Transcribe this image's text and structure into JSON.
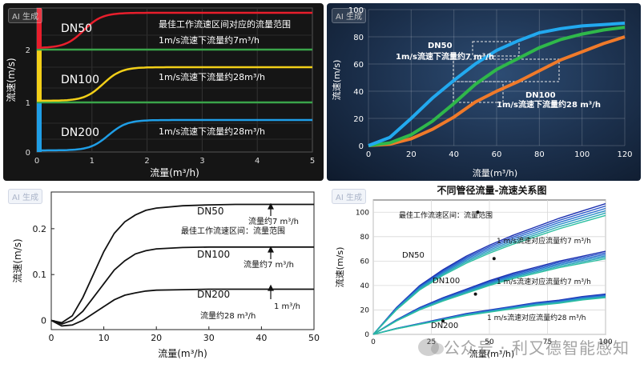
{
  "badges": [
    "AI 生成",
    "AI 生成",
    "AI 生成",
    "AI 生成"
  ],
  "watermark": "公众号 · 利又德智能感知",
  "chart_data": [
    {
      "type": "line",
      "xlabel": "流量(m³/h)",
      "ylabel": "流速(m/s)",
      "xlim": [
        0,
        5
      ],
      "xticks": [
        "0",
        "1",
        "2",
        "3",
        "4",
        "5"
      ],
      "ylabels_left": [
        "2",
        "1",
        "0"
      ],
      "grid": true,
      "series": [
        {
          "name": "DN50",
          "color": "#e81e2c"
        },
        {
          "name": "DN100",
          "color": "#f2cf18"
        },
        {
          "name": "DN200",
          "color": "#1f9ee6"
        }
      ],
      "separator_color": "#3aa54a",
      "annotations": [
        "最佳工作流速区间对应的流量范围",
        "1m/s流速下流量约7m³/h",
        "1m/s流速下流量约28m³/h",
        "1m/s流速下流量约28m³/h"
      ]
    },
    {
      "type": "line",
      "xlabel": "流量(m³/h)",
      "ylabel": "流速(m/s)",
      "xlim": [
        0,
        120
      ],
      "ylim": [
        0,
        100
      ],
      "xticks": [
        "0",
        "20",
        "40",
        "60",
        "80",
        "100",
        "120"
      ],
      "yticks": [
        "0",
        "20",
        "40",
        "60",
        "80",
        "100"
      ],
      "grid": true,
      "series": [
        {
          "name": "DN50",
          "color": "#22a9ef",
          "x": [
            0,
            10,
            20,
            30,
            40,
            50,
            60,
            70,
            80,
            90,
            100,
            110,
            120
          ],
          "y": [
            0,
            6,
            20,
            35,
            48,
            60,
            70,
            77,
            83,
            86,
            88,
            89,
            90
          ]
        },
        {
          "name": "DN100",
          "color": "#2fb84a",
          "x": [
            0,
            10,
            20,
            30,
            40,
            50,
            60,
            70,
            80,
            90,
            100,
            110,
            120
          ],
          "y": [
            0,
            2,
            8,
            18,
            31,
            45,
            56,
            64,
            72,
            78,
            82,
            85,
            87
          ]
        },
        {
          "name": "DN200",
          "color": "#f07a2a",
          "x": [
            0,
            10,
            20,
            30,
            40,
            50,
            60,
            70,
            80,
            90,
            100,
            110,
            120
          ],
          "y": [
            0,
            1,
            5,
            12,
            21,
            32,
            40,
            47,
            55,
            63,
            69,
            75,
            80
          ]
        }
      ],
      "annotations": [
        "DN50",
        "1m/s流速下流量约7 m³/h",
        "DN100",
        "1m/s流速下流量约28 m³/h"
      ]
    },
    {
      "type": "line",
      "xlabel": "流量(m³/h)",
      "ylabel": "流速(m/s)",
      "xlim": [
        0,
        50
      ],
      "ylim": [
        -0.02,
        0.28
      ],
      "xticks": [
        "0",
        "10",
        "20",
        "30",
        "40",
        "50"
      ],
      "yticks": [
        "0",
        "0.1",
        "0.2"
      ],
      "grid": false,
      "series": [
        {
          "name": "DN50",
          "color": "#111111",
          "x": [
            0,
            2,
            4,
            6,
            8,
            10,
            12,
            14,
            16,
            18,
            20,
            25,
            30,
            35,
            40,
            45,
            50
          ],
          "y": [
            0,
            -0.005,
            0.01,
            0.05,
            0.1,
            0.15,
            0.19,
            0.215,
            0.23,
            0.24,
            0.245,
            0.25,
            0.252,
            0.253,
            0.253,
            0.253,
            0.253
          ]
        },
        {
          "name": "DN100",
          "color": "#111111",
          "x": [
            0,
            2,
            4,
            6,
            8,
            10,
            12,
            14,
            16,
            18,
            20,
            25,
            30,
            35,
            40,
            45,
            50
          ],
          "y": [
            0,
            -0.008,
            0.0,
            0.02,
            0.05,
            0.08,
            0.11,
            0.13,
            0.145,
            0.152,
            0.156,
            0.159,
            0.16,
            0.16,
            0.16,
            0.16,
            0.16
          ]
        },
        {
          "name": "DN200",
          "color": "#111111",
          "x": [
            0,
            2,
            4,
            6,
            8,
            10,
            12,
            14,
            16,
            18,
            20,
            25,
            30,
            35,
            40,
            45,
            50
          ],
          "y": [
            0,
            -0.012,
            -0.01,
            0.0,
            0.015,
            0.03,
            0.045,
            0.055,
            0.06,
            0.064,
            0.066,
            0.067,
            0.068,
            0.068,
            0.068,
            0.068,
            0.068
          ]
        }
      ],
      "annotations": [
        "流量约7 m³/h",
        "最佳工作流速区间：流量范围",
        "流量约7 m³/h",
        "1 m³/h",
        "流量约28 m³/h"
      ]
    },
    {
      "type": "line",
      "title": "不同管径流量-流速关系图",
      "xlabel": "流量(m³/h)",
      "ylabel": "流速(m/s)",
      "xlim": [
        0,
        100
      ],
      "ylim": [
        0,
        110
      ],
      "xticks": [
        "0",
        "25",
        "50",
        "75",
        "100"
      ],
      "yticks": [
        "0",
        "20",
        "40",
        "60",
        "80",
        "100"
      ],
      "grid": true,
      "series": [
        {
          "name": "DN50",
          "color": "#1f3fc0",
          "x": [
            0,
            10,
            20,
            30,
            40,
            50,
            60,
            70,
            80,
            90,
            100
          ],
          "y": [
            0,
            22,
            40,
            53,
            64,
            73,
            81,
            88,
            95,
            101,
            107
          ]
        },
        {
          "name": "DN100",
          "color": "#1f3fc0",
          "x": [
            0,
            10,
            20,
            30,
            40,
            50,
            60,
            70,
            80,
            90,
            100
          ],
          "y": [
            0,
            12,
            22,
            30,
            37,
            44,
            50,
            55,
            60,
            64,
            68
          ]
        },
        {
          "name": "DN200",
          "color": "#1f3fc0",
          "x": [
            0,
            10,
            20,
            30,
            40,
            50,
            60,
            70,
            80,
            90,
            100
          ],
          "y": [
            0,
            5,
            9,
            13,
            17,
            20,
            23,
            26,
            28,
            31,
            33
          ]
        }
      ],
      "annotations": [
        "最佳工作流速区间：流量范围",
        "1 m/s流速对应流量约7 m³/h",
        "1 m/s流速对应流量约7 m³/h",
        "1 m/s流速对应流量约28 m³/h"
      ]
    }
  ]
}
